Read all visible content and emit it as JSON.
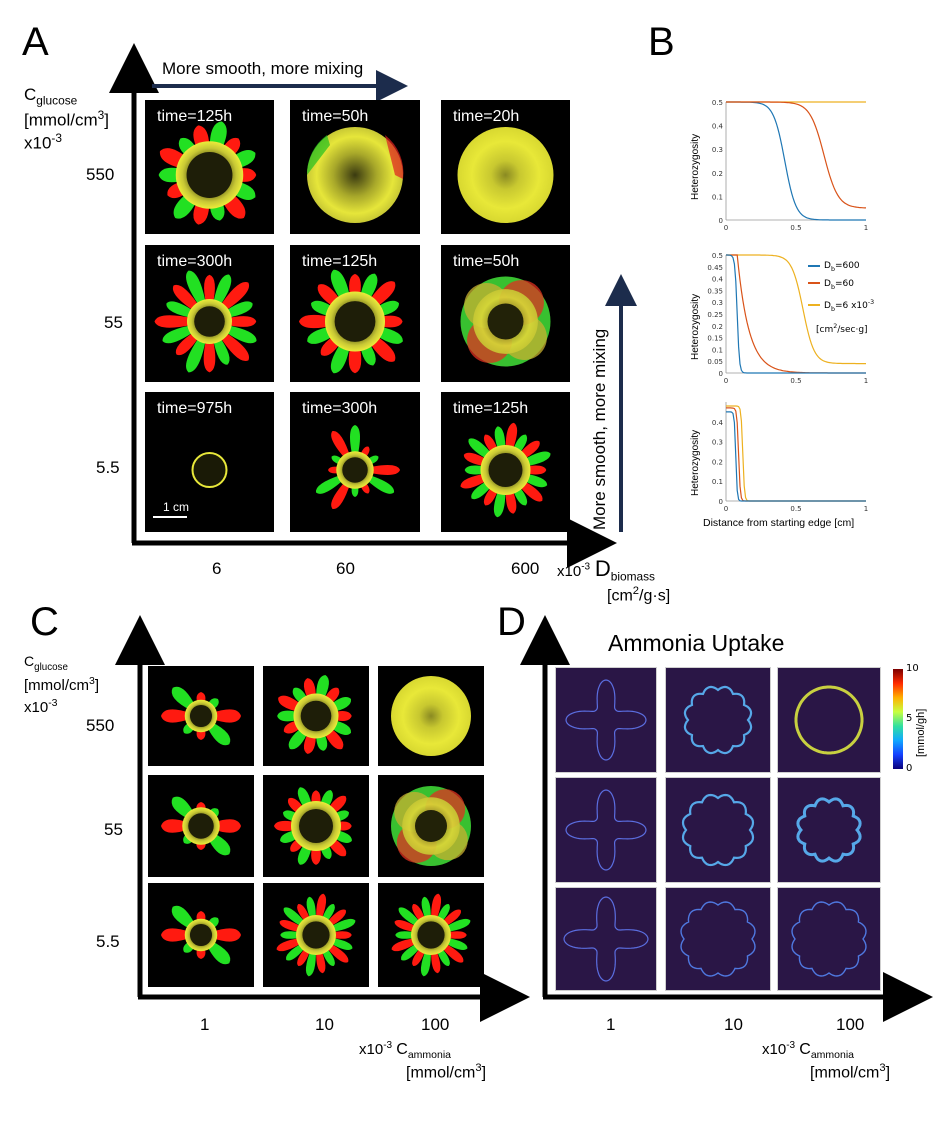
{
  "panels": {
    "A": {
      "label": "A",
      "y_axis": {
        "line1": "C",
        "sub": "glucose",
        "line2": "[mmol/cm",
        "sup": "3",
        "line2end": "]",
        "line3": "x10",
        "line3sup": "-3"
      },
      "y_ticks": [
        "550",
        "55",
        "5.5"
      ],
      "x_ticks": [
        "6",
        "60",
        "600"
      ],
      "x_axis": {
        "prefix": "x10",
        "prefix_sup": "-3",
        "main": "D",
        "sub": "biomass",
        "unit": "[cm",
        "unit_sup": "2",
        "unit_end": "/g·s]"
      },
      "top_arrow_text": "More smooth, more mixing",
      "side_arrow_text": "More smooth, more mixing",
      "scale_bar": "1 cm",
      "times": [
        [
          "time=125h",
          "time=50h",
          "time=20h"
        ],
        [
          "time=300h",
          "time=125h",
          "time=50h"
        ],
        [
          "time=975h",
          "time=300h",
          "time=125h"
        ]
      ]
    },
    "B": {
      "label": "B",
      "ylabel": "Heterozygosity",
      "xlabel": "Distance from starting edge [cm]",
      "x_ticks": [
        "0",
        "0.5",
        "1"
      ],
      "y_ticks_top": [
        "0",
        "0.1",
        "0.2",
        "0.3",
        "0.4",
        "0.5"
      ],
      "y_ticks_mid": [
        "0",
        "0.05",
        "0.1",
        "0.15",
        "0.2",
        "0.25",
        "0.3",
        "0.35",
        "0.4",
        "0.45",
        "0.5"
      ],
      "y_ticks_bot": [
        "0",
        "0.1",
        "0.2",
        "0.3",
        "0.4"
      ],
      "legend": [
        {
          "main": "D",
          "sub": "b",
          "rest": "=600",
          "color": "#1f77b4"
        },
        {
          "main": "D",
          "sub": "b",
          "rest": "=60",
          "color": "#d95319"
        },
        {
          "main": "D",
          "sub": "b",
          "rest": "=6 x10",
          "sup": "-3",
          "color": "#edb120"
        }
      ],
      "legend_unit": "[cm",
      "legend_unit_sup": "2",
      "legend_unit_end": "/sec·g]",
      "colors": {
        "blue": "#1f77b4",
        "orange": "#d95319",
        "yellow": "#edb120"
      }
    },
    "C": {
      "label": "C",
      "y_axis": {
        "line1": "C",
        "sub": "glucose",
        "line2": "[mmol/cm",
        "sup": "3",
        "line2end": "]",
        "line3": "x10",
        "line3sup": "-3"
      },
      "y_ticks": [
        "550",
        "55",
        "5.5"
      ],
      "x_ticks": [
        "1",
        "10",
        "100"
      ],
      "x_axis": {
        "prefix": "x10",
        "prefix_sup": "-3",
        "main": "C",
        "sub": "ammonia",
        "unit": "[mmol/cm",
        "unit_sup": "3",
        "unit_end": "]"
      }
    },
    "D": {
      "label": "D",
      "title": "Ammonia Uptake",
      "x_ticks": [
        "1",
        "10",
        "100"
      ],
      "x_axis": {
        "prefix": "x10",
        "prefix_sup": "-3",
        "main": "C",
        "sub": "ammonia",
        "unit": "[mmol/cm",
        "unit_sup": "3",
        "unit_end": "]"
      },
      "colorbar": {
        "ticks": [
          "10",
          "5",
          "0"
        ],
        "unit": "[mmol/gh]"
      }
    }
  }
}
